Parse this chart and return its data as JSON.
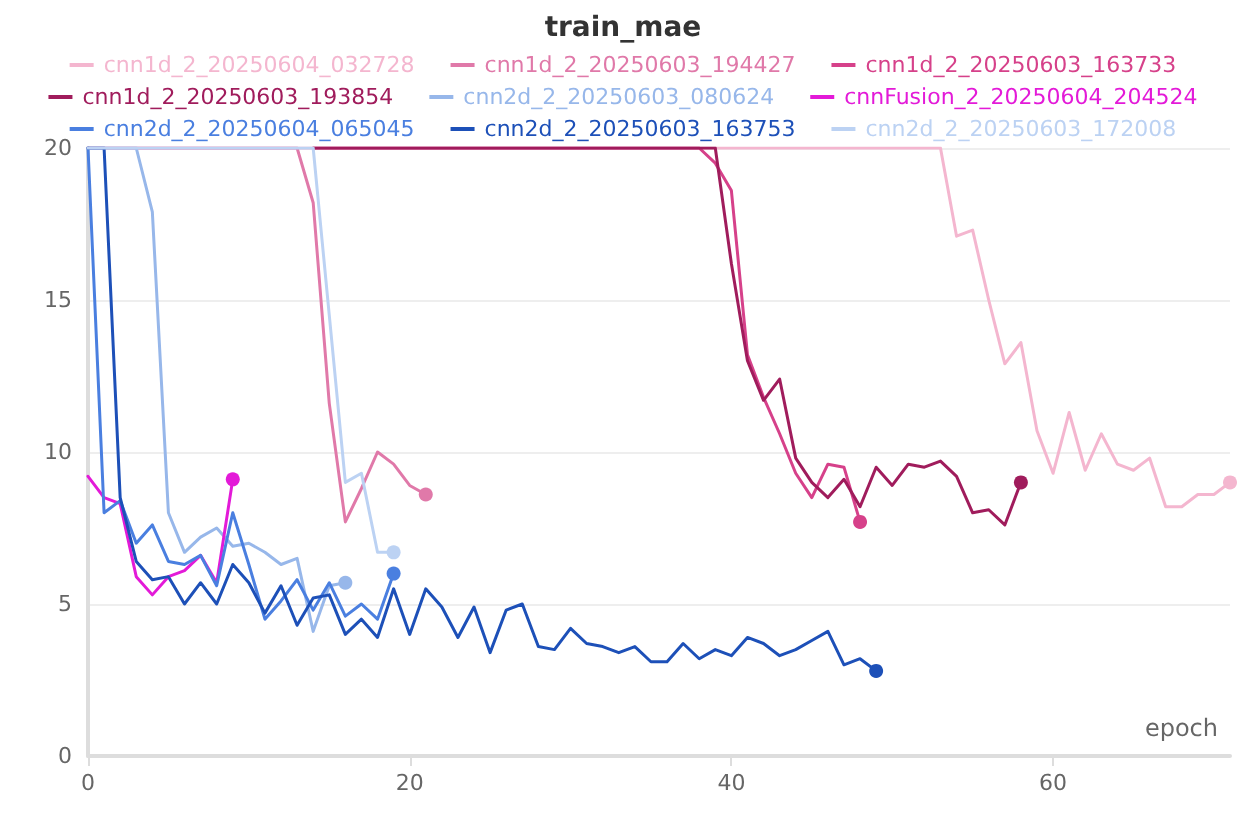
{
  "chart_data": {
    "type": "line",
    "title": "train_mae",
    "xlabel": "epoch",
    "xlim": [
      0,
      71
    ],
    "xticks": [
      0,
      20,
      40,
      60
    ],
    "ylim": [
      0,
      20
    ],
    "yticks": [
      0,
      5,
      10,
      15,
      20
    ],
    "grid": "y",
    "legend": "top",
    "series": [
      {
        "name": "cnn1d_2_20250604_032728",
        "color": "#f4b6cf",
        "x": [
          0,
          53,
          54,
          55,
          56,
          57,
          58,
          59,
          60,
          61,
          62,
          63,
          64,
          65,
          66,
          67,
          68,
          69,
          70,
          71
        ],
        "values": [
          20,
          20,
          17.1,
          17.3,
          15,
          12.9,
          13.6,
          10.7,
          9.3,
          11.3,
          9.4,
          10.6,
          9.6,
          9.4,
          9.8,
          8.2,
          8.2,
          8.6,
          8.6,
          9.0
        ]
      },
      {
        "name": "cnn1d_2_20250603_194427",
        "color": "#e079a9",
        "x": [
          0,
          13,
          14,
          15,
          16,
          17,
          18,
          19,
          20,
          21
        ],
        "values": [
          20,
          20,
          18.2,
          11.6,
          7.7,
          8.8,
          10,
          9.6,
          8.9,
          8.6
        ]
      },
      {
        "name": "cnn1d_2_20250603_163733",
        "color": "#d6418a",
        "x": [
          14,
          38,
          39,
          40,
          41,
          42,
          43,
          44,
          45,
          46,
          47,
          48
        ],
        "values": [
          20,
          20,
          19.5,
          18.6,
          13.2,
          11.8,
          10.6,
          9.3,
          8.5,
          9.6,
          9.5,
          7.7
        ]
      },
      {
        "name": "cnn1d_2_20250603_193854",
        "color": "#a01c5c",
        "x": [
          14,
          39,
          40,
          41,
          42,
          43,
          44,
          45,
          46,
          47,
          48,
          49,
          50,
          51,
          52,
          53,
          54,
          55,
          56,
          57,
          58
        ],
        "values": [
          20,
          20,
          16.2,
          13,
          11.7,
          12.4,
          9.8,
          9.0,
          8.5,
          9.1,
          8.2,
          9.5,
          8.9,
          9.6,
          9.5,
          9.7,
          9.2,
          8.0,
          8.1,
          7.6,
          9.0
        ]
      },
      {
        "name": "cnn2d_2_20250603_080624",
        "color": "#97b7ea",
        "x": [
          0,
          3,
          4,
          5,
          6,
          7,
          8,
          9,
          10,
          11,
          12,
          13,
          14,
          15,
          16
        ],
        "values": [
          20,
          20,
          17.9,
          8.0,
          6.7,
          7.2,
          7.5,
          6.9,
          7.0,
          6.7,
          6.3,
          6.5,
          4.1,
          5.6,
          5.7
        ]
      },
      {
        "name": "cnnFusion_2_20250604_204524",
        "color": "#e31ad8",
        "x": [
          0,
          1,
          2,
          3,
          4,
          5,
          6,
          7,
          8,
          9
        ],
        "values": [
          9.2,
          8.5,
          8.3,
          5.9,
          5.3,
          5.9,
          6.1,
          6.6,
          5.7,
          9.1
        ]
      },
      {
        "name": "cnn2d_2_20250604_065045",
        "color": "#4a7fe0",
        "x": [
          0,
          1,
          2,
          3,
          4,
          5,
          6,
          7,
          8,
          9,
          10,
          11,
          12,
          13,
          14,
          15,
          16,
          17,
          18,
          19
        ],
        "values": [
          20,
          8.0,
          8.4,
          7.0,
          7.6,
          6.4,
          6.3,
          6.6,
          5.6,
          8.0,
          6.3,
          4.5,
          5.1,
          5.8,
          4.8,
          5.7,
          4.6,
          5.0,
          4.5,
          6.0
        ]
      },
      {
        "name": "cnn2d_2_20250603_163753",
        "color": "#1d50b8",
        "x": [
          0,
          1,
          2,
          3,
          4,
          5,
          6,
          7,
          8,
          9,
          10,
          11,
          12,
          13,
          14,
          15,
          16,
          17,
          18,
          19,
          20,
          21,
          22,
          23,
          24,
          25,
          26,
          27,
          28,
          29,
          30,
          31,
          32,
          33,
          34,
          35,
          36,
          37,
          38,
          39,
          40,
          41,
          42,
          43,
          44,
          45,
          46,
          47,
          48,
          49
        ],
        "values": [
          20,
          20,
          8.5,
          6.4,
          5.8,
          5.9,
          5.0,
          5.7,
          5.0,
          6.3,
          5.7,
          4.7,
          5.6,
          4.3,
          5.2,
          5.3,
          4.0,
          4.5,
          3.9,
          5.5,
          4.0,
          5.5,
          4.9,
          3.9,
          4.9,
          3.4,
          4.8,
          5.0,
          3.6,
          3.5,
          4.2,
          3.7,
          3.6,
          3.4,
          3.6,
          3.1,
          3.1,
          3.7,
          3.2,
          3.5,
          3.3,
          3.9,
          3.7,
          3.3,
          3.5,
          3.8,
          4.1,
          3.0,
          3.2,
          2.8
        ]
      },
      {
        "name": "cnn2d_2_20250603_172008",
        "color": "#bcd2f3",
        "x": [
          0,
          14,
          15,
          16,
          17,
          18,
          19
        ],
        "values": [
          20,
          20,
          14.5,
          9.0,
          9.3,
          6.7,
          6.7
        ]
      }
    ]
  }
}
